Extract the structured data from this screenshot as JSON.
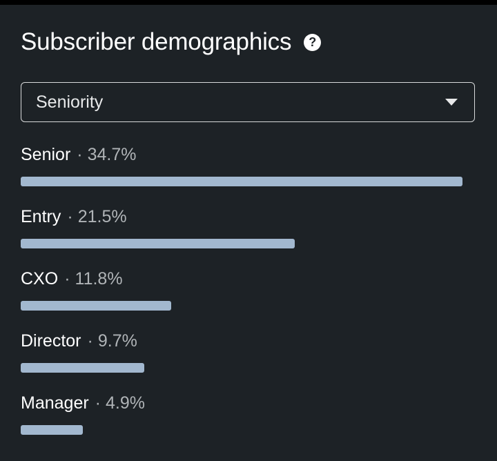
{
  "header": {
    "title": "Subscriber demographics",
    "help_icon": "help-circle-icon"
  },
  "dropdown": {
    "selected": "Seniority",
    "icon": "chevron-down-icon"
  },
  "separator": "·",
  "colors": {
    "background": "#1d2226",
    "bar": "#a2b8cf",
    "muted_text": "#b0b4b7"
  },
  "rows": [
    {
      "name": "Senior",
      "percent_label": "34.7%",
      "value": 34.7
    },
    {
      "name": "Entry",
      "percent_label": "21.5%",
      "value": 21.5
    },
    {
      "name": "CXO",
      "percent_label": "11.8%",
      "value": 11.8
    },
    {
      "name": "Director",
      "percent_label": "9.7%",
      "value": 9.7
    },
    {
      "name": "Manager",
      "percent_label": "4.9%",
      "value": 4.9
    }
  ]
}
